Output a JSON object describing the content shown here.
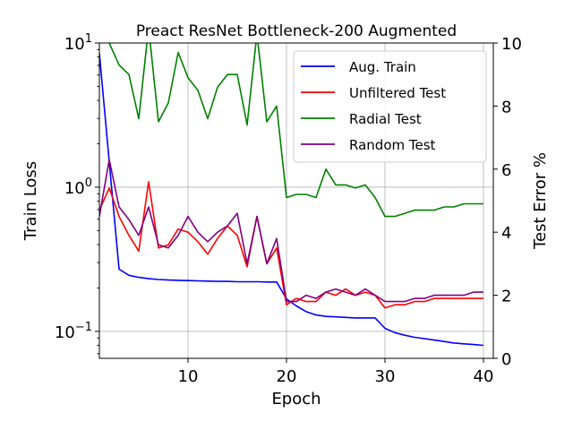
{
  "chart_data": {
    "type": "line",
    "title": "Preact ResNet Bottleneck-200 Augmented",
    "xlabel": "Epoch",
    "ylabel_left": "Train Loss",
    "ylabel_right": "Test Error %",
    "xlim": [
      1,
      41
    ],
    "ylim_left": [
      0.065,
      10
    ],
    "yscale_left": "log",
    "ylim_right": [
      0,
      10
    ],
    "x_ticks": [
      "10",
      "20",
      "30",
      "40"
    ],
    "y_left_ticks": [
      {
        "base": "10",
        "exp": "−1"
      },
      {
        "base": "10",
        "exp": "0"
      },
      {
        "base": "10",
        "exp": "1"
      }
    ],
    "y_right_ticks": [
      "0",
      "2",
      "4",
      "6",
      "8",
      "10"
    ],
    "grid": true,
    "legend_position": "top-right",
    "x": [
      1,
      2,
      3,
      4,
      5,
      6,
      7,
      8,
      9,
      10,
      11,
      12,
      13,
      14,
      15,
      16,
      17,
      18,
      19,
      20,
      21,
      22,
      23,
      24,
      25,
      26,
      27,
      28,
      29,
      30,
      31,
      32,
      33,
      34,
      35,
      36,
      37,
      38,
      39,
      40
    ],
    "series": [
      {
        "name": "Aug. Train",
        "axis": "left",
        "color": "#0000ff",
        "values": [
          8.5,
          1.5,
          0.27,
          0.245,
          0.237,
          0.232,
          0.229,
          0.227,
          0.226,
          0.225,
          0.224,
          0.223,
          0.222,
          0.222,
          0.221,
          0.221,
          0.221,
          0.22,
          0.22,
          0.168,
          0.15,
          0.137,
          0.13,
          0.127,
          0.126,
          0.125,
          0.124,
          0.124,
          0.124,
          0.105,
          0.098,
          0.094,
          0.091,
          0.089,
          0.087,
          0.085,
          0.083,
          0.082,
          0.081,
          0.08
        ]
      },
      {
        "name": "Unfiltered Test",
        "axis": "right",
        "color": "#ff0000",
        "values": [
          4.7,
          5.4,
          4.5,
          3.9,
          3.4,
          5.6,
          3.5,
          3.6,
          4.1,
          4.0,
          3.7,
          3.3,
          3.8,
          4.2,
          3.9,
          2.9,
          4.5,
          3.0,
          3.5,
          1.7,
          1.9,
          1.8,
          1.8,
          2.1,
          2.0,
          2.2,
          2.0,
          2.1,
          2.0,
          1.6,
          1.7,
          1.7,
          1.8,
          1.8,
          1.9,
          1.9,
          1.9,
          1.9,
          1.9,
          1.9
        ]
      },
      {
        "name": "Radial Test",
        "axis": "right",
        "color": "#008000",
        "values": [
          10.3,
          10.0,
          9.3,
          9.0,
          7.6,
          10.5,
          7.5,
          8.1,
          9.7,
          8.9,
          8.5,
          7.6,
          8.6,
          9.0,
          9.0,
          7.4,
          10.3,
          7.5,
          8.0,
          5.1,
          5.2,
          5.2,
          5.1,
          6.0,
          5.5,
          5.5,
          5.4,
          5.5,
          5.1,
          4.5,
          4.5,
          4.6,
          4.7,
          4.7,
          4.7,
          4.8,
          4.8,
          4.9,
          4.9,
          4.9
        ]
      },
      {
        "name": "Random Test",
        "axis": "right",
        "color": "#800080",
        "values": [
          4.5,
          6.3,
          4.8,
          4.4,
          3.9,
          4.8,
          3.6,
          3.5,
          3.9,
          4.5,
          4.0,
          3.7,
          4.0,
          4.2,
          4.6,
          3.0,
          4.5,
          3.0,
          3.8,
          1.8,
          1.8,
          2.0,
          1.9,
          2.1,
          2.2,
          2.1,
          2.0,
          2.2,
          2.0,
          1.8,
          1.8,
          1.8,
          1.9,
          1.9,
          2.0,
          2.0,
          2.0,
          2.0,
          2.1,
          2.1
        ]
      }
    ]
  }
}
